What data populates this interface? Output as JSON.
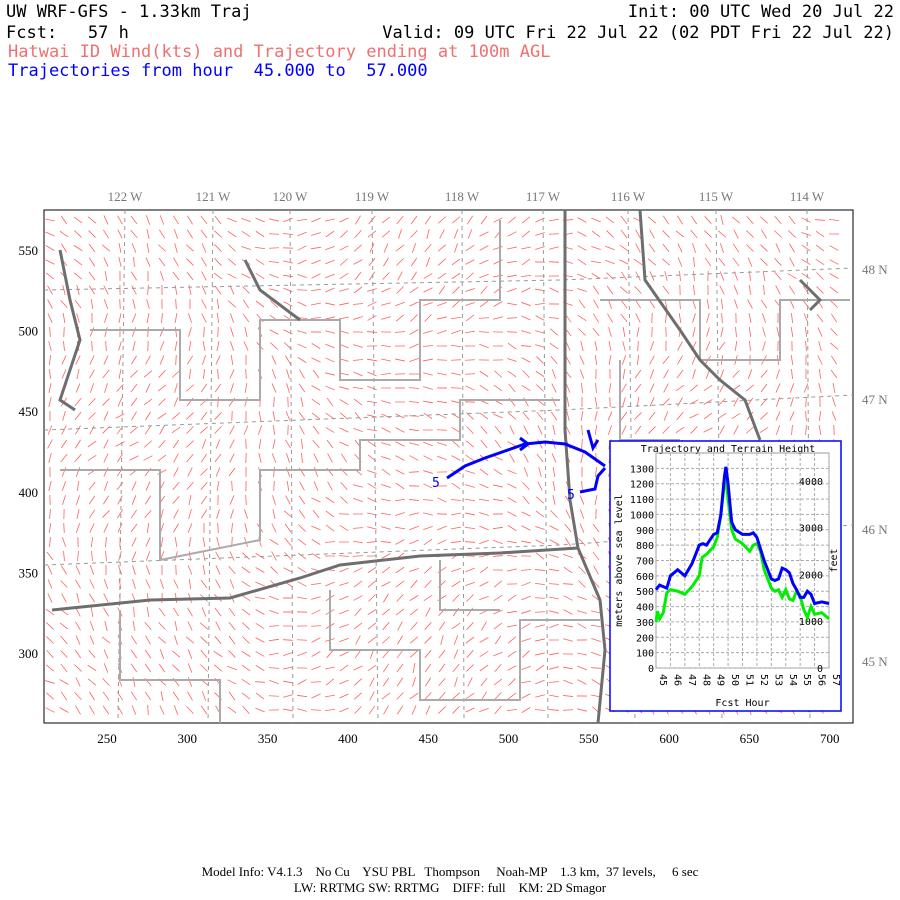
{
  "header": {
    "title": "UW WRF-GFS - 1.33km Traj",
    "init": "Init: 00 UTC Wed 20 Jul 22",
    "fcst": "Fcst:   57 h",
    "valid": "Valid: 09 UTC Fri 22 Jul 22 (02 PDT Fri 22 Jul 22)",
    "subtitle": "Hatwai ID Wind(kts) and Trajectory ending at 100m AGL",
    "traj_range": "Trajectories from hour  45.000 to  57.000"
  },
  "colors": {
    "wind": "#ff6060",
    "trajectory": "#0000ff",
    "terrain": "#00ee00",
    "border": "#707070",
    "county": "#a8a8a8"
  },
  "map": {
    "x_ticks": [
      "250",
      "300",
      "350",
      "400",
      "450",
      "500",
      "550",
      "600",
      "650",
      "700"
    ],
    "y_ticks": [
      "550",
      "500",
      "450",
      "400",
      "350",
      "300"
    ],
    "lon_labels": [
      "122 W",
      "121 W",
      "120 W",
      "119 W",
      "118 W",
      "117 W",
      "116 W",
      "115 W",
      "114 W"
    ],
    "lat_labels": [
      "48 N",
      "47 N",
      "46 N",
      "45 N"
    ],
    "traj_markers": [
      "5",
      "5"
    ]
  },
  "chart_data": {
    "type": "line",
    "title": "Trajectory and Terrain Height",
    "xlabel": "Fcst Hour",
    "ylabel": "meters above sea level",
    "ylabel_right": "feet",
    "xlim": [
      45,
      57
    ],
    "ylim": [
      0,
      1400
    ],
    "x_ticks": [
      "45",
      "46",
      "47",
      "48",
      "49",
      "50",
      "51",
      "52",
      "53",
      "54",
      "55",
      "56",
      "57"
    ],
    "y_ticks": [
      "0",
      "100",
      "200",
      "300",
      "400",
      "500",
      "600",
      "700",
      "800",
      "900",
      "1000",
      "1100",
      "1200",
      "1300"
    ],
    "y_right_ticks": [
      "0",
      "1000",
      "2000",
      "3000",
      "4000"
    ],
    "grid": true,
    "series": [
      {
        "color": "#0000ff",
        "x": [
          45,
          45.25,
          45.5,
          45.75,
          46,
          46.5,
          47,
          47.5,
          48,
          48.25,
          48.5,
          49,
          49.25,
          49.5,
          49.75,
          49.85,
          50,
          50.25,
          50.5,
          51,
          51.5,
          51.75,
          52,
          52.5,
          53,
          53.25,
          53.5,
          53.75,
          54,
          54.25,
          54.5,
          54.75,
          55,
          55.25,
          55.5,
          55.75,
          56,
          56.5,
          57
        ],
        "y": [
          510,
          540,
          530,
          520,
          600,
          640,
          600,
          680,
          800,
          810,
          800,
          870,
          880,
          1000,
          1250,
          1310,
          1200,
          950,
          900,
          870,
          870,
          880,
          850,
          700,
          580,
          570,
          580,
          650,
          640,
          620,
          550,
          510,
          460,
          460,
          500,
          480,
          420,
          430,
          420
        ]
      },
      {
        "color": "#00ee00",
        "x": [
          45,
          45.1,
          45.25,
          45.5,
          45.75,
          46,
          46.5,
          47,
          47.5,
          48,
          48.2,
          48.5,
          49,
          49.25,
          49.5,
          49.75,
          49.85,
          50,
          50.25,
          50.5,
          51,
          51.5,
          51.75,
          52,
          52.25,
          52.5,
          53,
          53.25,
          53.5,
          53.75,
          54,
          54.25,
          54.5,
          54.75,
          55,
          55.25,
          55.5,
          55.75,
          56,
          56.5,
          57
        ],
        "y": [
          300,
          370,
          320,
          360,
          490,
          510,
          500,
          480,
          530,
          600,
          720,
          740,
          790,
          850,
          1000,
          1200,
          1240,
          1100,
          900,
          840,
          810,
          760,
          800,
          810,
          760,
          640,
          520,
          500,
          510,
          460,
          510,
          450,
          440,
          500,
          470,
          380,
          330,
          400,
          350,
          360,
          320
        ]
      }
    ]
  },
  "footer": {
    "line1": "Model Info: V4.1.3    No Cu    YSU PBL   Thompson     Noah-MP    1.3 km,  37 levels,     6 sec",
    "line2": "LW: RRTMG SW: RRTMG    DIFF: full    KM: 2D Smagor"
  }
}
